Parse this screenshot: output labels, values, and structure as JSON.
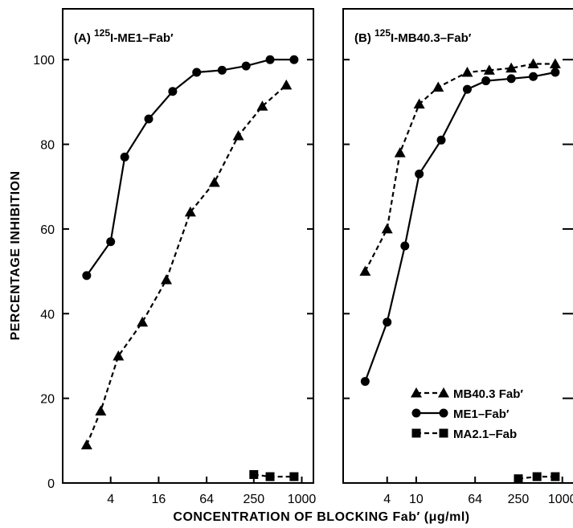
{
  "chart_data": [
    {
      "type": "line",
      "panel_label": "(A)",
      "title_superscript": "125",
      "title_text": "I-ME1–Fab′",
      "xlabel": "CONCENTRATION OF BLOCKING Fab′ (μg/ml)",
      "ylabel": "PERCENTAGE INHIBITION",
      "x_scale": "log2",
      "xlim": [
        1,
        1400
      ],
      "ylim": [
        0,
        112
      ],
      "y_ticks": [
        0,
        20,
        40,
        60,
        80,
        100
      ],
      "x_ticks": [
        "4",
        "16",
        "64",
        "250",
        "1000"
      ],
      "grid": false,
      "series": [
        {
          "name": "ME1–Fab′",
          "marker": "circle",
          "line": "solid",
          "x": [
            2,
            4,
            6,
            12,
            24,
            48,
            100,
            200,
            400,
            800
          ],
          "y": [
            49,
            57,
            77,
            86,
            92.5,
            97,
            97.5,
            98.5,
            100,
            100
          ]
        },
        {
          "name": "MB40.3 Fab′",
          "marker": "triangle",
          "line": "dashed",
          "x": [
            2,
            3,
            5,
            10,
            20,
            40,
            80,
            160,
            320,
            640
          ],
          "y": [
            9,
            17,
            30,
            38,
            48,
            64,
            71,
            82,
            89,
            94
          ]
        },
        {
          "name": "MA2.1–Fab",
          "marker": "square",
          "line": "dashed",
          "x": [
            250,
            400,
            800
          ],
          "y": [
            2,
            1.5,
            1.5
          ]
        }
      ]
    },
    {
      "type": "line",
      "panel_label": "(B)",
      "title_superscript": "125",
      "title_text": "I-MB40.3–Fab′",
      "xlabel": "CONCENTRATION OF BLOCKING Fab′ (μg/ml)",
      "ylabel": "PERCENTAGE INHIBITION",
      "x_scale": "log2",
      "xlim": [
        1,
        1400
      ],
      "ylim": [
        0,
        112
      ],
      "y_ticks": [
        0,
        20,
        40,
        60,
        80,
        100
      ],
      "x_ticks": [
        "4",
        "10",
        "64",
        "250",
        "1000"
      ],
      "grid": false,
      "legend_position": "bottom-right",
      "series": [
        {
          "name": "MB40.3 Fab′",
          "marker": "triangle",
          "line": "dashed",
          "x": [
            2,
            4,
            6,
            11,
            20,
            50,
            100,
            200,
            400,
            800
          ],
          "y": [
            50,
            60,
            78,
            89.5,
            93.5,
            97,
            97.5,
            98,
            99,
            99
          ]
        },
        {
          "name": "ME1–Fab′",
          "marker": "circle",
          "line": "solid",
          "x": [
            2,
            4,
            7,
            11,
            22,
            50,
            90,
            200,
            400,
            800
          ],
          "y": [
            24,
            38,
            56,
            73,
            81,
            93,
            95,
            95.5,
            96,
            97
          ]
        },
        {
          "name": "MA2.1–Fab",
          "marker": "square",
          "line": "dashed",
          "x": [
            250,
            450,
            800
          ],
          "y": [
            1,
            1.5,
            1.5
          ]
        }
      ]
    }
  ],
  "legend": {
    "items": [
      {
        "label": "MB40.3 Fab′",
        "marker": "triangle",
        "line": "dashed"
      },
      {
        "label": "ME1–Fab′",
        "marker": "circle",
        "line": "solid"
      },
      {
        "label": "MA2.1–Fab",
        "marker": "square",
        "line": "dashed"
      }
    ]
  }
}
